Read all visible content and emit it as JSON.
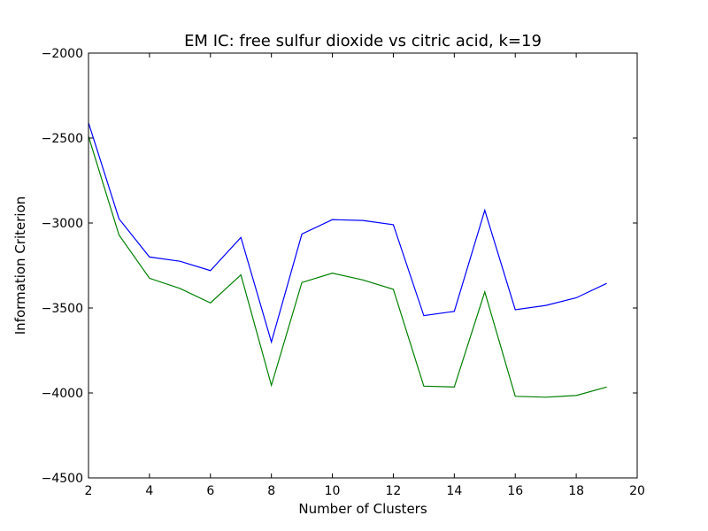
{
  "chart_data": {
    "type": "line",
    "title": "EM IC: free sulfur dioxide vs citric acid, k=19",
    "xlabel": "Number of Clusters",
    "ylabel": "Information Criterion",
    "xlim": [
      2,
      20
    ],
    "ylim": [
      -4500,
      -2000
    ],
    "xticks": [
      2,
      4,
      6,
      8,
      10,
      12,
      14,
      16,
      18,
      20
    ],
    "yticks": [
      -2000,
      -2500,
      -3000,
      -3500,
      -4000,
      -4500
    ],
    "xtick_labels": [
      "2",
      "4",
      "6",
      "8",
      "10",
      "12",
      "14",
      "16",
      "18",
      "20"
    ],
    "ytick_labels": [
      "−2000",
      "−2500",
      "−3000",
      "−3500",
      "−4000",
      "−4500"
    ],
    "grid": false,
    "x": [
      2,
      3,
      4,
      5,
      6,
      7,
      8,
      9,
      10,
      11,
      12,
      13,
      14,
      15,
      16,
      17,
      18,
      19
    ],
    "series": [
      {
        "color": "#0000ff",
        "values": [
          -2410,
          -2975,
          -3200,
          -3225,
          -3280,
          -3085,
          -3700,
          -3065,
          -2980,
          -2985,
          -3010,
          -3545,
          -3520,
          -2925,
          -3510,
          -3485,
          -3440,
          -3355
        ]
      },
      {
        "color": "#008000",
        "values": [
          -2490,
          -3070,
          -3325,
          -3385,
          -3470,
          -3305,
          -3955,
          -3350,
          -3295,
          -3335,
          -3390,
          -3960,
          -3965,
          -3405,
          -4020,
          -4025,
          -4015,
          -3965
        ]
      }
    ]
  }
}
